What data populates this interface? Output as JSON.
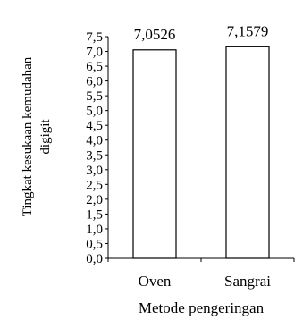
{
  "chart_data": {
    "type": "bar",
    "categories": [
      "Oven",
      "Sangrai"
    ],
    "values": [
      7.0526,
      7.1579
    ],
    "data_labels": [
      "7,0526",
      "7,1579"
    ],
    "xlabel": "Metode pengeringan",
    "ylabel_lines": [
      "Tingkat kesukaan kemudahan",
      "digigit"
    ],
    "ylim": [
      0,
      7.5
    ],
    "yticks": [
      0,
      0.5,
      1,
      1.5,
      2,
      2.5,
      3,
      3.5,
      4,
      4.5,
      5,
      5.5,
      6,
      6.5,
      7,
      7.5
    ],
    "ytick_labels": [
      "0,0",
      "0,5",
      "1,0",
      "1,5",
      "2,0",
      "2,5",
      "3,0",
      "3,5",
      "4,0",
      "4,5",
      "5,0",
      "5,5",
      "6,0",
      "6,5",
      "7,0",
      "7,5"
    ],
    "grid": false,
    "bar_fill": "#ffffff",
    "bar_stroke": "#000000"
  }
}
